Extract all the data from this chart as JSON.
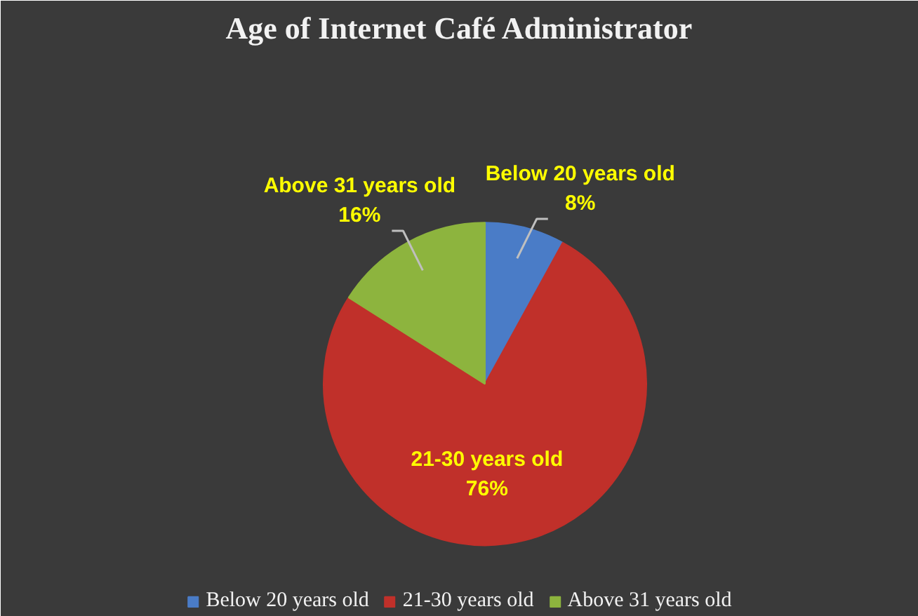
{
  "chart_data": {
    "type": "pie",
    "title": "Age of Internet Café Administrator",
    "categories": [
      "Below 20 years old",
      "21-30 years old",
      "Above 31 years old"
    ],
    "values": [
      8,
      76,
      16
    ],
    "colors": [
      "#4a7cc7",
      "#c0302a",
      "#8db43e"
    ],
    "value_labels": [
      "8%",
      "76%",
      "16%"
    ],
    "legend": "bottom"
  }
}
